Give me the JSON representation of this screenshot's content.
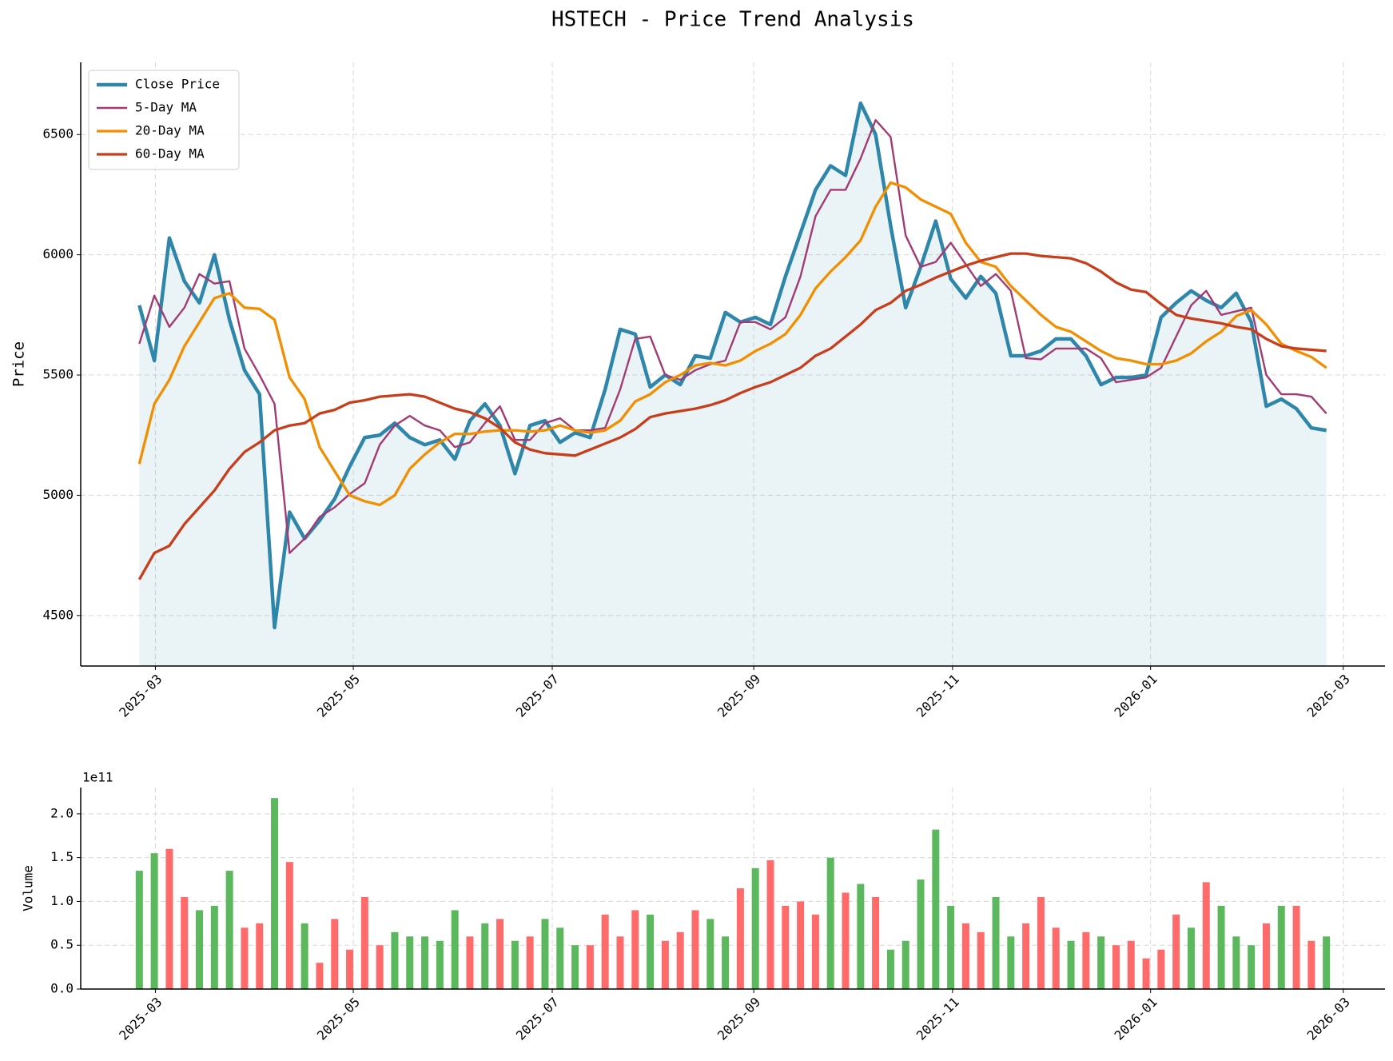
{
  "chart_data": [
    {
      "type": "line",
      "title": "HSTECH - Price Trend Analysis",
      "ylabel": "Price",
      "xlim": [
        -3.9,
        82.9
      ],
      "ylim": [
        4290,
        6800
      ],
      "xticks": [
        {
          "value": 1.07,
          "label": "2025-03"
        },
        {
          "value": 14.24,
          "label": "2025-05"
        },
        {
          "value": 27.48,
          "label": "2025-07"
        },
        {
          "value": 40.89,
          "label": "2025-09"
        },
        {
          "value": 54.12,
          "label": "2025-11"
        },
        {
          "value": 67.3,
          "label": "2026-01"
        },
        {
          "value": 80.12,
          "label": "2026-03"
        }
      ],
      "yticks": [
        4500,
        5000,
        5500,
        6000,
        6500
      ],
      "grid": true,
      "legend": "upper left",
      "series": [
        {
          "name": "Close Price",
          "color": "#2e86ab",
          "linewidth": 4.5,
          "area": true,
          "values": [
            5790,
            5560,
            6070,
            5890,
            5800,
            6000,
            5730,
            5520,
            5420,
            4450,
            4930,
            4820,
            4895,
            4985,
            5120,
            5240,
            5250,
            5300,
            5240,
            5210,
            5230,
            5150,
            5310,
            5380,
            5290,
            5090,
            5290,
            5310,
            5220,
            5260,
            5240,
            5440,
            5690,
            5670,
            5450,
            5500,
            5460,
            5580,
            5570,
            5760,
            5720,
            5740,
            5710,
            5910,
            6090,
            6270,
            6370,
            6330,
            6630,
            6500,
            6120,
            5780,
            5950,
            6140,
            5900,
            5820,
            5910,
            5840,
            5580,
            5580,
            5600,
            5650,
            5650,
            5580,
            5460,
            5490,
            5490,
            5500,
            5740,
            5800,
            5850,
            5810,
            5780,
            5840,
            5720,
            5370,
            5400,
            5360,
            5280,
            5270
          ]
        },
        {
          "name": "5-Day MA",
          "color": "#a23b72",
          "linewidth": 2.4,
          "values": [
            5630,
            5830,
            5700,
            5780,
            5920,
            5880,
            5890,
            5610,
            5500,
            5380,
            4760,
            4820,
            4910,
            4950,
            5005,
            5050,
            5210,
            5290,
            5330,
            5290,
            5270,
            5200,
            5220,
            5300,
            5370,
            5230,
            5230,
            5300,
            5320,
            5270,
            5270,
            5280,
            5440,
            5650,
            5660,
            5500,
            5480,
            5520,
            5545,
            5560,
            5720,
            5720,
            5690,
            5740,
            5910,
            6160,
            6270,
            6270,
            6400,
            6560,
            6490,
            6080,
            5950,
            5970,
            6050,
            5960,
            5870,
            5920,
            5850,
            5570,
            5565,
            5610,
            5610,
            5610,
            5570,
            5470,
            5480,
            5490,
            5530,
            5660,
            5790,
            5850,
            5750,
            5765,
            5780,
            5500,
            5420,
            5420,
            5410,
            5340
          ]
        },
        {
          "name": "20-Day MA",
          "color": "#f18f01",
          "linewidth": 3.3,
          "values": [
            5130,
            5380,
            5480,
            5620,
            5720,
            5820,
            5840,
            5780,
            5775,
            5730,
            5490,
            5400,
            5200,
            5100,
            5000,
            4975,
            4960,
            5000,
            5110,
            5170,
            5220,
            5255,
            5255,
            5265,
            5270,
            5270,
            5265,
            5270,
            5290,
            5270,
            5260,
            5270,
            5310,
            5390,
            5420,
            5470,
            5500,
            5540,
            5550,
            5540,
            5560,
            5600,
            5630,
            5670,
            5750,
            5860,
            5930,
            5990,
            6060,
            6200,
            6300,
            6280,
            6230,
            6200,
            6170,
            6050,
            5970,
            5950,
            5870,
            5810,
            5750,
            5700,
            5680,
            5640,
            5600,
            5570,
            5560,
            5545,
            5545,
            5560,
            5590,
            5640,
            5680,
            5745,
            5770,
            5710,
            5630,
            5600,
            5575,
            5530
          ]
        },
        {
          "name": "60-Day MA",
          "color": "#c73e1d",
          "linewidth": 3.3,
          "values": [
            4650,
            4760,
            4790,
            4880,
            4950,
            5020,
            5110,
            5180,
            5220,
            5270,
            5290,
            5300,
            5340,
            5355,
            5385,
            5395,
            5410,
            5415,
            5420,
            5410,
            5385,
            5360,
            5345,
            5320,
            5280,
            5220,
            5190,
            5175,
            5170,
            5165,
            5190,
            5215,
            5240,
            5275,
            5325,
            5340,
            5350,
            5360,
            5375,
            5395,
            5425,
            5450,
            5470,
            5500,
            5530,
            5580,
            5610,
            5660,
            5710,
            5770,
            5800,
            5850,
            5875,
            5905,
            5930,
            5955,
            5975,
            5990,
            6005,
            6005,
            5995,
            5990,
            5985,
            5965,
            5930,
            5885,
            5855,
            5845,
            5795,
            5750,
            5735,
            5725,
            5715,
            5700,
            5690,
            5650,
            5620,
            5610,
            5605,
            5600
          ]
        }
      ]
    },
    {
      "type": "bar",
      "ylabel": "Volume",
      "y_offset_label": "1e11",
      "xlim": [
        -3.9,
        82.9
      ],
      "ylim": [
        0,
        2.3
      ],
      "xticks": [
        {
          "value": 1.07,
          "label": "2025-03"
        },
        {
          "value": 14.24,
          "label": "2025-05"
        },
        {
          "value": 27.48,
          "label": "2025-07"
        },
        {
          "value": 40.89,
          "label": "2025-09"
        },
        {
          "value": 54.12,
          "label": "2025-11"
        },
        {
          "value": 67.3,
          "label": "2026-01"
        },
        {
          "value": 80.12,
          "label": "2026-03"
        }
      ],
      "yticks": [
        {
          "value": 0,
          "label": "0.0"
        },
        {
          "value": 0.5,
          "label": "0.5"
        },
        {
          "value": 1,
          "label": "1.0"
        },
        {
          "value": 1.5,
          "label": "1.5"
        },
        {
          "value": 2,
          "label": "2.0"
        }
      ],
      "grid": true,
      "values": [
        1.35,
        1.55,
        1.6,
        1.05,
        0.9,
        0.95,
        1.35,
        0.7,
        0.75,
        2.18,
        1.45,
        0.75,
        0.3,
        0.8,
        0.45,
        1.05,
        0.5,
        0.65,
        0.6,
        0.6,
        0.55,
        0.9,
        0.6,
        0.75,
        0.8,
        0.55,
        0.6,
        0.8,
        0.7,
        0.5,
        0.5,
        0.85,
        0.6,
        0.9,
        0.85,
        0.55,
        0.65,
        0.9,
        0.8,
        0.6,
        1.15,
        1.38,
        1.47,
        0.95,
        1.0,
        0.85,
        1.5,
        1.1,
        1.2,
        1.05,
        0.45,
        0.55,
        1.25,
        1.82,
        0.95,
        0.75,
        0.65,
        1.05,
        0.6,
        0.75,
        1.05,
        0.7,
        0.55,
        0.65,
        0.6,
        0.5,
        0.55,
        0.35,
        0.45,
        0.85,
        0.7,
        1.22,
        0.95,
        0.6,
        0.5,
        0.75,
        0.95,
        0.95,
        0.55,
        0.6
      ],
      "colors": [
        "#5cb85c",
        "#5cb85c",
        "#ff6b6b",
        "#ff6b6b",
        "#5cb85c",
        "#5cb85c",
        "#5cb85c",
        "#ff6b6b",
        "#ff6b6b",
        "#5cb85c",
        "#ff6b6b",
        "#5cb85c",
        "#ff6b6b",
        "#ff6b6b",
        "#ff6b6b",
        "#ff6b6b",
        "#ff6b6b",
        "#5cb85c",
        "#5cb85c",
        "#5cb85c",
        "#5cb85c",
        "#5cb85c",
        "#ff6b6b",
        "#5cb85c",
        "#ff6b6b",
        "#5cb85c",
        "#ff6b6b",
        "#5cb85c",
        "#5cb85c",
        "#5cb85c",
        "#ff6b6b",
        "#ff6b6b",
        "#ff6b6b",
        "#ff6b6b",
        "#5cb85c",
        "#ff6b6b",
        "#ff6b6b",
        "#ff6b6b",
        "#5cb85c",
        "#5cb85c",
        "#ff6b6b",
        "#5cb85c",
        "#ff6b6b",
        "#ff6b6b",
        "#ff6b6b",
        "#ff6b6b",
        "#5cb85c",
        "#ff6b6b",
        "#5cb85c",
        "#ff6b6b",
        "#5cb85c",
        "#5cb85c",
        "#5cb85c",
        "#5cb85c",
        "#5cb85c",
        "#ff6b6b",
        "#ff6b6b",
        "#5cb85c",
        "#5cb85c",
        "#ff6b6b",
        "#ff6b6b",
        "#ff6b6b",
        "#5cb85c",
        "#ff6b6b",
        "#5cb85c",
        "#ff6b6b",
        "#ff6b6b",
        "#ff6b6b",
        "#ff6b6b",
        "#ff6b6b",
        "#5cb85c",
        "#ff6b6b",
        "#5cb85c",
        "#5cb85c",
        "#5cb85c",
        "#ff6b6b",
        "#5cb85c",
        "#ff6b6b",
        "#ff6b6b",
        "#5cb85c"
      ]
    }
  ]
}
